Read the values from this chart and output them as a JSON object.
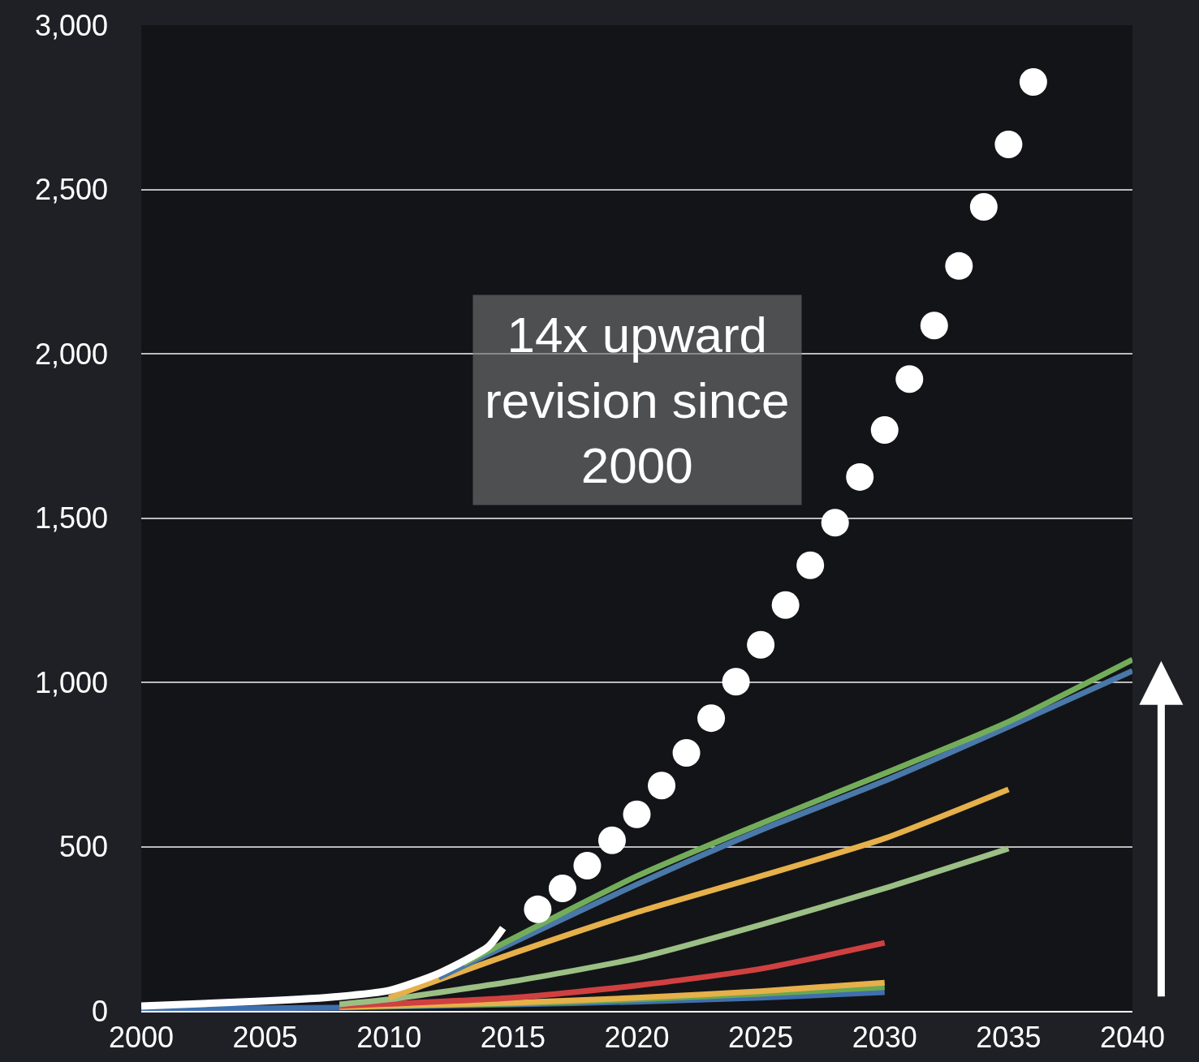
{
  "chart_data": {
    "type": "line",
    "xlim": [
      2000,
      2040
    ],
    "xticks": [
      2000,
      2005,
      2010,
      2015,
      2020,
      2025,
      2030,
      2035,
      2040
    ],
    "ylim": [
      0,
      3000
    ],
    "yticks": [
      {
        "value": 0,
        "label": "0"
      },
      {
        "value": 500,
        "label": "500"
      },
      {
        "value": 1000,
        "label": "1,000"
      },
      {
        "value": 1500,
        "label": "1,500"
      },
      {
        "value": 2000,
        "label": "2,000"
      },
      {
        "value": 2500,
        "label": "2,500"
      },
      {
        "value": 3000,
        "label": "3,000"
      }
    ],
    "grid": "y",
    "annotations": [
      "14x upward\nrevision since\n2000"
    ],
    "series": [
      {
        "color": "#3f6fae",
        "x": [
          2000,
          2008,
          2015,
          2020,
          2025,
          2030
        ],
        "values": [
          5,
          10,
          20,
          28,
          40,
          57
        ]
      },
      {
        "color": "#6aa84f",
        "x": [
          2008,
          2015,
          2020,
          2025,
          2030
        ],
        "values": [
          12,
          22,
          35,
          52,
          72
        ]
      },
      {
        "color": "#e6b04a",
        "x": [
          2008,
          2015,
          2020,
          2025,
          2030
        ],
        "values": [
          12,
          25,
          40,
          60,
          86
        ]
      },
      {
        "color": "#d04040",
        "x": [
          2008,
          2015,
          2020,
          2025,
          2030
        ],
        "values": [
          15,
          40,
          77,
          128,
          207
        ]
      },
      {
        "color": "#9bbf85",
        "x": [
          2008,
          2010,
          2015,
          2020,
          2025,
          2030,
          2035
        ],
        "values": [
          20,
          35,
          90,
          160,
          262,
          373,
          494
        ]
      },
      {
        "color": "#e6b04a",
        "x": [
          2010,
          2015,
          2020,
          2025,
          2030,
          2035
        ],
        "values": [
          40,
          175,
          300,
          410,
          525,
          674
        ]
      },
      {
        "color": "#4a78a8",
        "x": [
          2012,
          2020,
          2025,
          2030,
          2035,
          2040
        ],
        "values": [
          101,
          385,
          550,
          700,
          865,
          1035
        ]
      },
      {
        "color": "#73ad5a",
        "x": [
          2013,
          2020,
          2025,
          2030,
          2035,
          2040
        ],
        "values": [
          143,
          410,
          570,
          723,
          880,
          1069
        ]
      },
      {
        "color": "#ffffff",
        "x": [
          2000,
          2005,
          2008,
          2010,
          2012,
          2014,
          2014.6
        ],
        "values": [
          15,
          30,
          44,
          62,
          114,
          195,
          252
        ]
      },
      {
        "type": "scatter",
        "marker": "circle",
        "color": "#ffffff",
        "x": [
          2016,
          2017,
          2018,
          2019,
          2020,
          2021,
          2022,
          2023,
          2024,
          2025,
          2026,
          2027,
          2028,
          2029,
          2030,
          2031,
          2032,
          2033,
          2034,
          2035,
          2036
        ],
        "values": [
          309,
          373,
          442,
          519,
          598,
          686,
          785,
          891,
          1002,
          1114,
          1235,
          1356,
          1486,
          1625,
          1768,
          1923,
          2086,
          2267,
          2447,
          2637,
          2827
        ]
      }
    ]
  }
}
